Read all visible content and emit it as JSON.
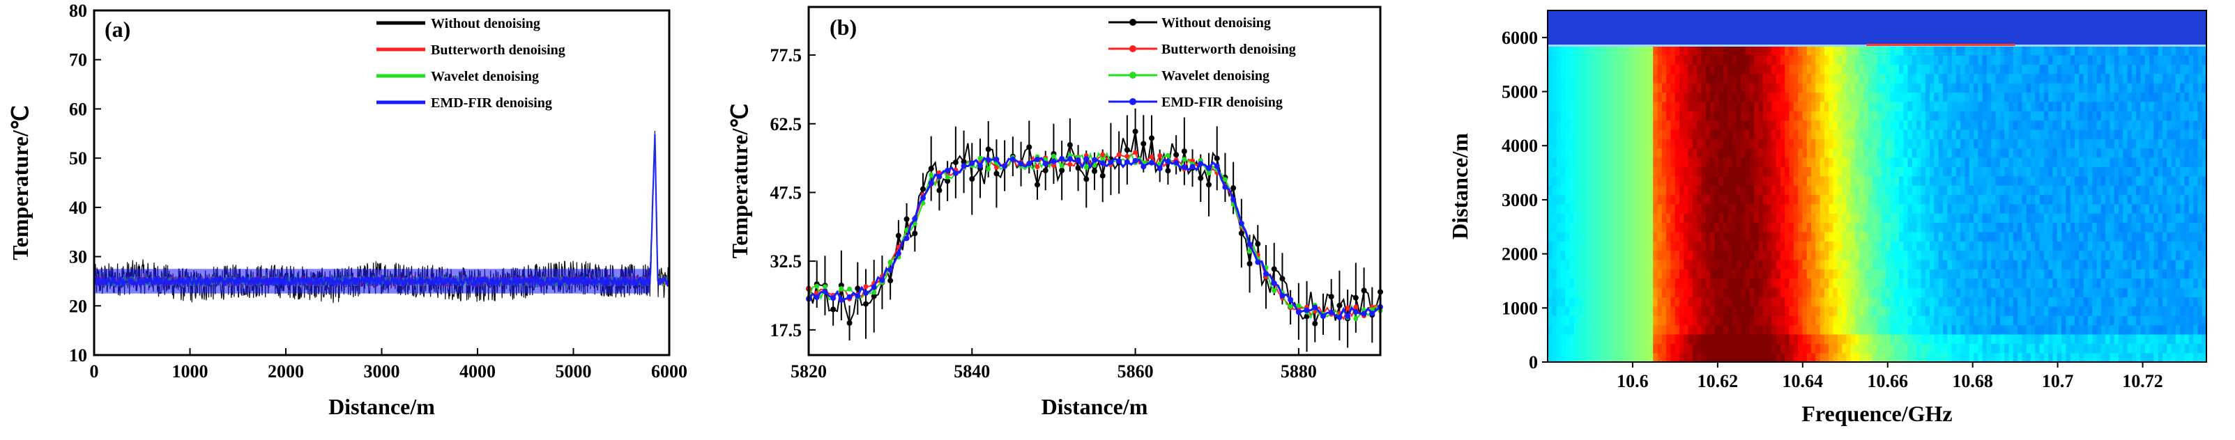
{
  "chart_data": [
    {
      "type": "line",
      "panel_label": "(a)",
      "xlabel": "Distance/m",
      "ylabel": "Temperature/℃",
      "xlim": [
        0,
        6000
      ],
      "ylim": [
        10,
        80
      ],
      "xticks": [
        "0",
        "1000",
        "2000",
        "3000",
        "4000",
        "5000",
        "6000"
      ],
      "yticks": [
        "10",
        "20",
        "30",
        "40",
        "50",
        "60",
        "70",
        "80"
      ],
      "legend_position": "top-right",
      "series": [
        {
          "name": "Without denoising",
          "color": "#000000",
          "x": [
            0,
            500,
            1000,
            1500,
            2000,
            2500,
            3000,
            3500,
            4000,
            4500,
            5000,
            5500,
            5800,
            5850,
            5880,
            6000
          ],
          "y": [
            25,
            26,
            24,
            25,
            25,
            24,
            26,
            25,
            24,
            25,
            26,
            25,
            25,
            55,
            25,
            25
          ]
        },
        {
          "name": "Butterworth denoising",
          "color": "#ff2020",
          "x": [
            0,
            1000,
            2000,
            3000,
            4000,
            5000,
            5800,
            5850,
            5880,
            6000
          ],
          "y": [
            25,
            25,
            25,
            25,
            25,
            25,
            25,
            55,
            25,
            25
          ]
        },
        {
          "name": "Wavelet  denoising",
          "color": "#22dd22",
          "x": [
            0,
            1000,
            2000,
            3000,
            4000,
            5000,
            5800,
            5850,
            5880,
            6000
          ],
          "y": [
            25,
            25,
            25,
            25,
            25,
            25,
            25,
            55,
            25,
            25
          ]
        },
        {
          "name": "EMD-FIR denoising",
          "color": "#1a1aff",
          "x": [
            0,
            1000,
            2000,
            3000,
            4000,
            5000,
            5800,
            5850,
            5880,
            6000
          ],
          "y": [
            25,
            25,
            25,
            25,
            25,
            25,
            25,
            55,
            25,
            25
          ]
        }
      ]
    },
    {
      "type": "line",
      "panel_label": "(b)",
      "xlabel": "Distance/m",
      "ylabel": "Temperature/℃",
      "xlim": [
        5820,
        5890
      ],
      "ylim": [
        12,
        88
      ],
      "xticks": [
        "5820",
        "5840",
        "5860",
        "5880"
      ],
      "yticks": [
        "17.5",
        "32.5",
        "47.5",
        "62.5",
        "77.5"
      ],
      "legend_position": "top-right",
      "series": [
        {
          "name": "Without denoising",
          "color": "#000000",
          "x": [
            5820,
            5825,
            5828,
            5830,
            5832,
            5835,
            5840,
            5845,
            5850,
            5855,
            5860,
            5865,
            5870,
            5872,
            5874,
            5876,
            5878,
            5880,
            5885,
            5890
          ],
          "y": [
            26,
            22,
            24,
            30,
            38,
            52,
            54,
            53,
            54,
            55,
            58,
            54,
            52,
            45,
            35,
            30,
            25,
            22,
            21,
            23
          ]
        },
        {
          "name": "Butterworth denoising",
          "color": "#ff2020",
          "x": [
            5820,
            5825,
            5828,
            5830,
            5832,
            5835,
            5840,
            5850,
            5860,
            5870,
            5872,
            5874,
            5876,
            5878,
            5880,
            5885,
            5890
          ],
          "y": [
            26,
            25,
            27,
            31,
            38,
            50,
            54,
            54,
            55,
            53,
            46,
            36,
            30,
            25,
            22,
            21,
            22
          ]
        },
        {
          "name": "Wavelet  denoising",
          "color": "#22dd22",
          "x": [
            5820,
            5825,
            5828,
            5830,
            5832,
            5835,
            5840,
            5850,
            5860,
            5870,
            5872,
            5874,
            5876,
            5878,
            5880,
            5885,
            5890
          ],
          "y": [
            26,
            25,
            27,
            31,
            38,
            50,
            54,
            54,
            55,
            53,
            46,
            36,
            30,
            25,
            22,
            21,
            22
          ]
        },
        {
          "name": "EMD-FIR denoising",
          "color": "#1a1aff",
          "x": [
            5820,
            5825,
            5828,
            5830,
            5832,
            5835,
            5840,
            5850,
            5860,
            5870,
            5872,
            5874,
            5876,
            5878,
            5880,
            5885,
            5890
          ],
          "y": [
            25,
            25,
            27,
            31,
            38,
            50,
            54,
            54,
            54,
            53,
            46,
            36,
            30,
            25,
            22,
            21,
            22
          ]
        }
      ]
    },
    {
      "type": "heatmap",
      "xlabel": "Frequence/GHz",
      "ylabel": "Distance/m",
      "xlim": [
        10.58,
        10.735
      ],
      "ylim": [
        0,
        6500
      ],
      "xticks": [
        "10.6",
        "10.62",
        "10.64",
        "10.66",
        "10.68",
        "10.7",
        "10.72"
      ],
      "yticks": [
        "0",
        "1000",
        "2000",
        "3000",
        "4000",
        "5000",
        "6000"
      ],
      "colormap": "jet",
      "peak_frequency_bottom": 10.625,
      "peak_frequency_top": 10.622,
      "top_band_distance": [
        5850,
        6500
      ]
    }
  ]
}
